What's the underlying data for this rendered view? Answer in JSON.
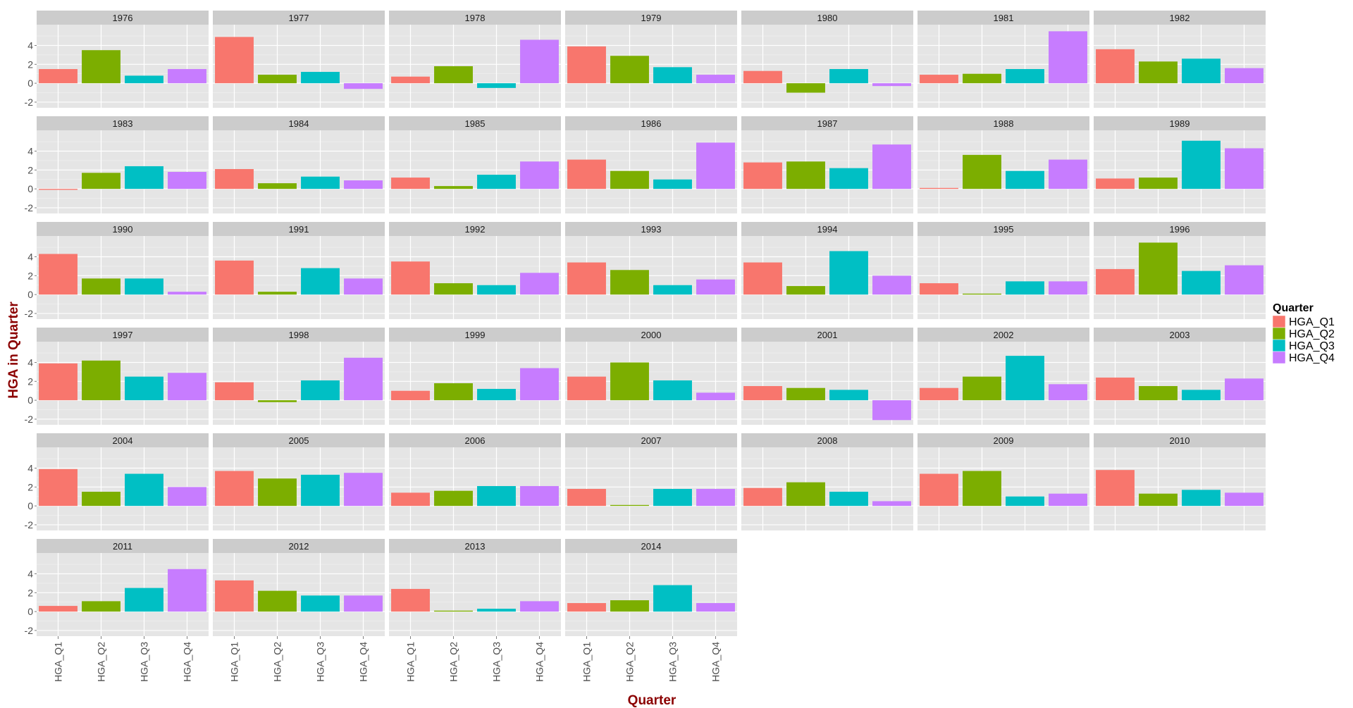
{
  "chart_data": {
    "type": "bar",
    "facet_type": "wrap",
    "xlabel": "Quarter",
    "ylabel": "HGA in Quarter",
    "ylim": [
      -2.6,
      6.2
    ],
    "y_ticks": [
      -2,
      0,
      2,
      4
    ],
    "categories": [
      "HGA_Q1",
      "HGA_Q2",
      "HGA_Q3",
      "HGA_Q4"
    ],
    "legend": {
      "title": "Quarter",
      "position": "right",
      "entries": [
        "HGA_Q1",
        "HGA_Q2",
        "HGA_Q3",
        "HGA_Q4"
      ]
    },
    "colors": [
      "#F8766D",
      "#7CAE00",
      "#00BFC4",
      "#C77CFF"
    ],
    "theme": {
      "panel_bg": "#E5E5E5",
      "strip_bg": "#CCCCCC",
      "grid": "#FFFFFF",
      "axis_title_color": "#8B0000",
      "tick_color": "#4D4D4D"
    },
    "panels": [
      {
        "label": "1976",
        "values": [
          1.5,
          3.5,
          0.8,
          1.5
        ]
      },
      {
        "label": "1977",
        "values": [
          4.9,
          0.9,
          1.2,
          -0.6
        ]
      },
      {
        "label": "1978",
        "values": [
          0.7,
          1.8,
          -0.5,
          4.6
        ]
      },
      {
        "label": "1979",
        "values": [
          3.9,
          2.9,
          1.7,
          0.9
        ]
      },
      {
        "label": "1980",
        "values": [
          1.3,
          -1.0,
          1.5,
          -0.3
        ]
      },
      {
        "label": "1981",
        "values": [
          0.9,
          1.0,
          1.5,
          5.5
        ]
      },
      {
        "label": "1982",
        "values": [
          3.6,
          2.3,
          2.6,
          1.6
        ]
      },
      {
        "label": "1983",
        "values": [
          -0.1,
          1.7,
          2.4,
          1.8
        ]
      },
      {
        "label": "1984",
        "values": [
          2.1,
          0.6,
          1.3,
          0.9
        ]
      },
      {
        "label": "1985",
        "values": [
          1.2,
          0.3,
          1.5,
          2.9
        ]
      },
      {
        "label": "1986",
        "values": [
          3.1,
          1.9,
          1.0,
          4.9
        ]
      },
      {
        "label": "1987",
        "values": [
          2.8,
          2.9,
          2.2,
          4.7
        ]
      },
      {
        "label": "1988",
        "values": [
          0.1,
          3.6,
          1.9,
          3.1
        ]
      },
      {
        "label": "1989",
        "values": [
          1.1,
          1.2,
          5.1,
          4.3
        ]
      },
      {
        "label": "1990",
        "values": [
          4.3,
          1.7,
          1.7,
          0.3
        ]
      },
      {
        "label": "1991",
        "values": [
          3.6,
          0.3,
          2.8,
          1.7
        ]
      },
      {
        "label": "1992",
        "values": [
          3.5,
          1.2,
          1.0,
          2.3
        ]
      },
      {
        "label": "1993",
        "values": [
          3.4,
          2.6,
          1.0,
          1.6
        ]
      },
      {
        "label": "1994",
        "values": [
          3.4,
          0.9,
          4.6,
          2.0
        ]
      },
      {
        "label": "1995",
        "values": [
          1.2,
          0.1,
          1.4,
          1.4
        ]
      },
      {
        "label": "1996",
        "values": [
          2.7,
          5.5,
          2.5,
          3.1
        ]
      },
      {
        "label": "1997",
        "values": [
          3.9,
          4.2,
          2.5,
          2.9
        ]
      },
      {
        "label": "1998",
        "values": [
          1.9,
          -0.2,
          2.1,
          4.5
        ]
      },
      {
        "label": "1999",
        "values": [
          1.0,
          1.8,
          1.2,
          3.4
        ]
      },
      {
        "label": "2000",
        "values": [
          2.5,
          4.0,
          2.1,
          0.8
        ]
      },
      {
        "label": "2001",
        "values": [
          1.5,
          1.3,
          1.1,
          -2.1
        ]
      },
      {
        "label": "2002",
        "values": [
          1.3,
          2.5,
          4.7,
          1.7
        ]
      },
      {
        "label": "2003",
        "values": [
          2.4,
          1.5,
          1.1,
          2.3
        ]
      },
      {
        "label": "2004",
        "values": [
          3.9,
          1.5,
          3.4,
          2.0
        ]
      },
      {
        "label": "2005",
        "values": [
          3.7,
          2.9,
          3.3,
          3.5
        ]
      },
      {
        "label": "2006",
        "values": [
          1.4,
          1.6,
          2.1,
          2.1
        ]
      },
      {
        "label": "2007",
        "values": [
          1.8,
          0.1,
          1.8,
          1.8
        ]
      },
      {
        "label": "2008",
        "values": [
          1.9,
          2.5,
          1.5,
          0.5
        ]
      },
      {
        "label": "2009",
        "values": [
          3.4,
          3.7,
          1.0,
          1.3
        ]
      },
      {
        "label": "2010",
        "values": [
          3.8,
          1.3,
          1.7,
          1.4
        ]
      },
      {
        "label": "2011",
        "values": [
          0.6,
          1.1,
          2.5,
          4.5
        ]
      },
      {
        "label": "2012",
        "values": [
          3.3,
          2.2,
          1.7,
          1.7
        ]
      },
      {
        "label": "2013",
        "values": [
          2.4,
          0.1,
          0.3,
          1.1
        ]
      },
      {
        "label": "2014",
        "values": [
          0.9,
          1.2,
          2.8,
          0.9
        ]
      }
    ]
  }
}
